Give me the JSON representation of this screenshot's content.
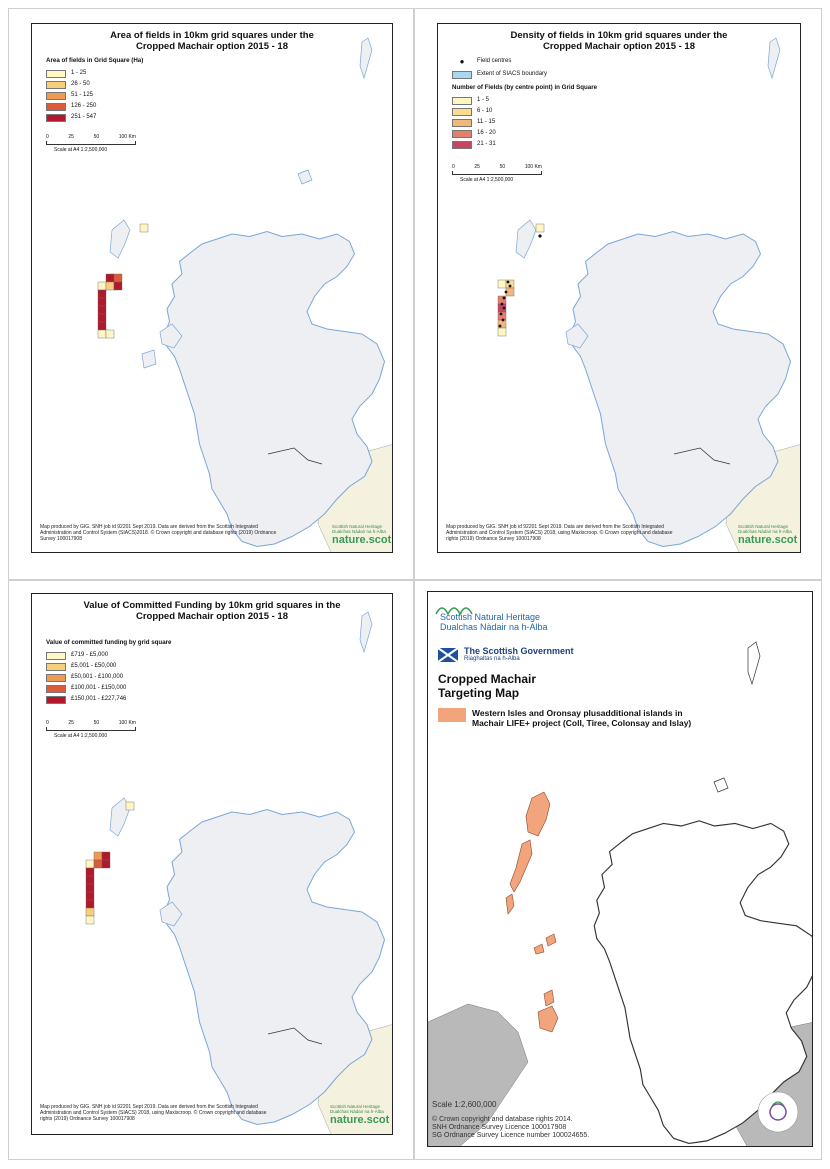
{
  "panels": [
    {
      "title_line1": "Area of fields in 10km grid squares under the",
      "title_line2": "Cropped Machair  option 2015 - 18",
      "legend_heading": "Area of fields in Grid Square (Ha)",
      "legend_items": [
        {
          "label": "1 - 25",
          "color": "#fff6c4"
        },
        {
          "label": "26 - 50",
          "color": "#f7cf7a"
        },
        {
          "label": "51 - 125",
          "color": "#ee9a55"
        },
        {
          "label": "126 - 250",
          "color": "#dd5a3a"
        },
        {
          "label": "251 - 547",
          "color": "#b2182b"
        }
      ],
      "scale_ticks": [
        "0",
        "25",
        "50",
        "100 Km"
      ],
      "scale_text": "Scale at A4 1:2,500,000",
      "credit": "Map produced by GIG. SNH job id 92201 Sept 2019. Data are derived from the Scottish Integrated Administration and Control System (SIACS)2018. © Crown copyright and database rights (2019) Ordnance Survey 100017908",
      "logo_small": "Scottish Natural Heritage Dualchas Nàdair na h-Alba",
      "logo_big": "nature.scot"
    },
    {
      "title_line1": "Density of fields in 10km grid squares under the",
      "title_line2": "Cropped Machair option 2015 - 18",
      "point_label": "Field centres",
      "boundary_label": "Extent of SIACS boundary",
      "legend_heading": "Number of Fields (by centre point) in Grid Square",
      "legend_items": [
        {
          "label": "1 - 5",
          "color": "#fff6c4"
        },
        {
          "label": "6 - 10",
          "color": "#f9dc8f"
        },
        {
          "label": "11 - 15",
          "color": "#f3b77a"
        },
        {
          "label": "16 - 20",
          "color": "#e47f6e"
        },
        {
          "label": "21 - 31",
          "color": "#c84463"
        }
      ],
      "scale_ticks": [
        "0",
        "25",
        "50",
        "100 Km"
      ],
      "scale_text": "Scale at A4 1:2,500,000",
      "credit": "Map produced by GIG. SNH job id 92201 Sept 2019. Data are derived from the Scottish Integrated Administration and Control System (SIACS) 2018, using Maxiscroop. © Crown copyright and database rights (2019) Ordnance Survey 100017908",
      "logo_small": "Scottish Natural Heritage Dualchas Nàdair na h-Alba",
      "logo_big": "nature.scot"
    },
    {
      "title_line1": "Value of Committed Funding by 10km grid squares in the",
      "title_line2": "Cropped Machair option 2015 - 18",
      "legend_heading": "Value of committed funding by grid square",
      "legend_items": [
        {
          "label": "£719 - £5,000",
          "color": "#fff6c4"
        },
        {
          "label": "£5,001 - £50,000",
          "color": "#f7cf7a"
        },
        {
          "label": "£50,001 - £100,000",
          "color": "#ee9a55"
        },
        {
          "label": "£100,001 - £150,000",
          "color": "#dd5a3a"
        },
        {
          "label": "£150,001 - £227,746",
          "color": "#b2182b"
        }
      ],
      "scale_ticks": [
        "0",
        "25",
        "50",
        "100 Km"
      ],
      "scale_text": "Scale at A4 1:2,500,000",
      "credit": "Map produced by GIG. SNH job id 92201 Sept 2019. Data are derived from the Scottish Integrated Administration and Control System (SIACS) 2018, using Maxiscroop. © Crown copyright and database rights (2019) Ordnance Survey 100017908",
      "logo_small": "Scottish Natural Heritage Dualchas Nàdair na h-Alba",
      "logo_big": "nature.scot"
    },
    {
      "snh_name_line1": "Scottish Natural Heritage",
      "snh_name_line2": "Dualchas Nàdair na h-Alba",
      "gov_name_line1": "The Scottish Government",
      "gov_name_line2": "Riaghaltas na h-Alba",
      "title_line1": "Cropped Machair",
      "title_line2": "Targeting Map",
      "legend_label_line1": "Western Isles and Oronsay plusadditional islands in",
      "legend_label_line2": "Machair LIFE+ project (Coll, Tiree, Colonsay and Islay)",
      "legend_color": "#f2a57c",
      "scale_text": "Scale   1:2,600,000",
      "credit_line1": "© Crown copyright and database rights 2014.",
      "credit_line2": "SNH Ordnance Survey Licence 100017908",
      "credit_line3": "SG Ordnance Survey Licence number 100024655."
    }
  ]
}
